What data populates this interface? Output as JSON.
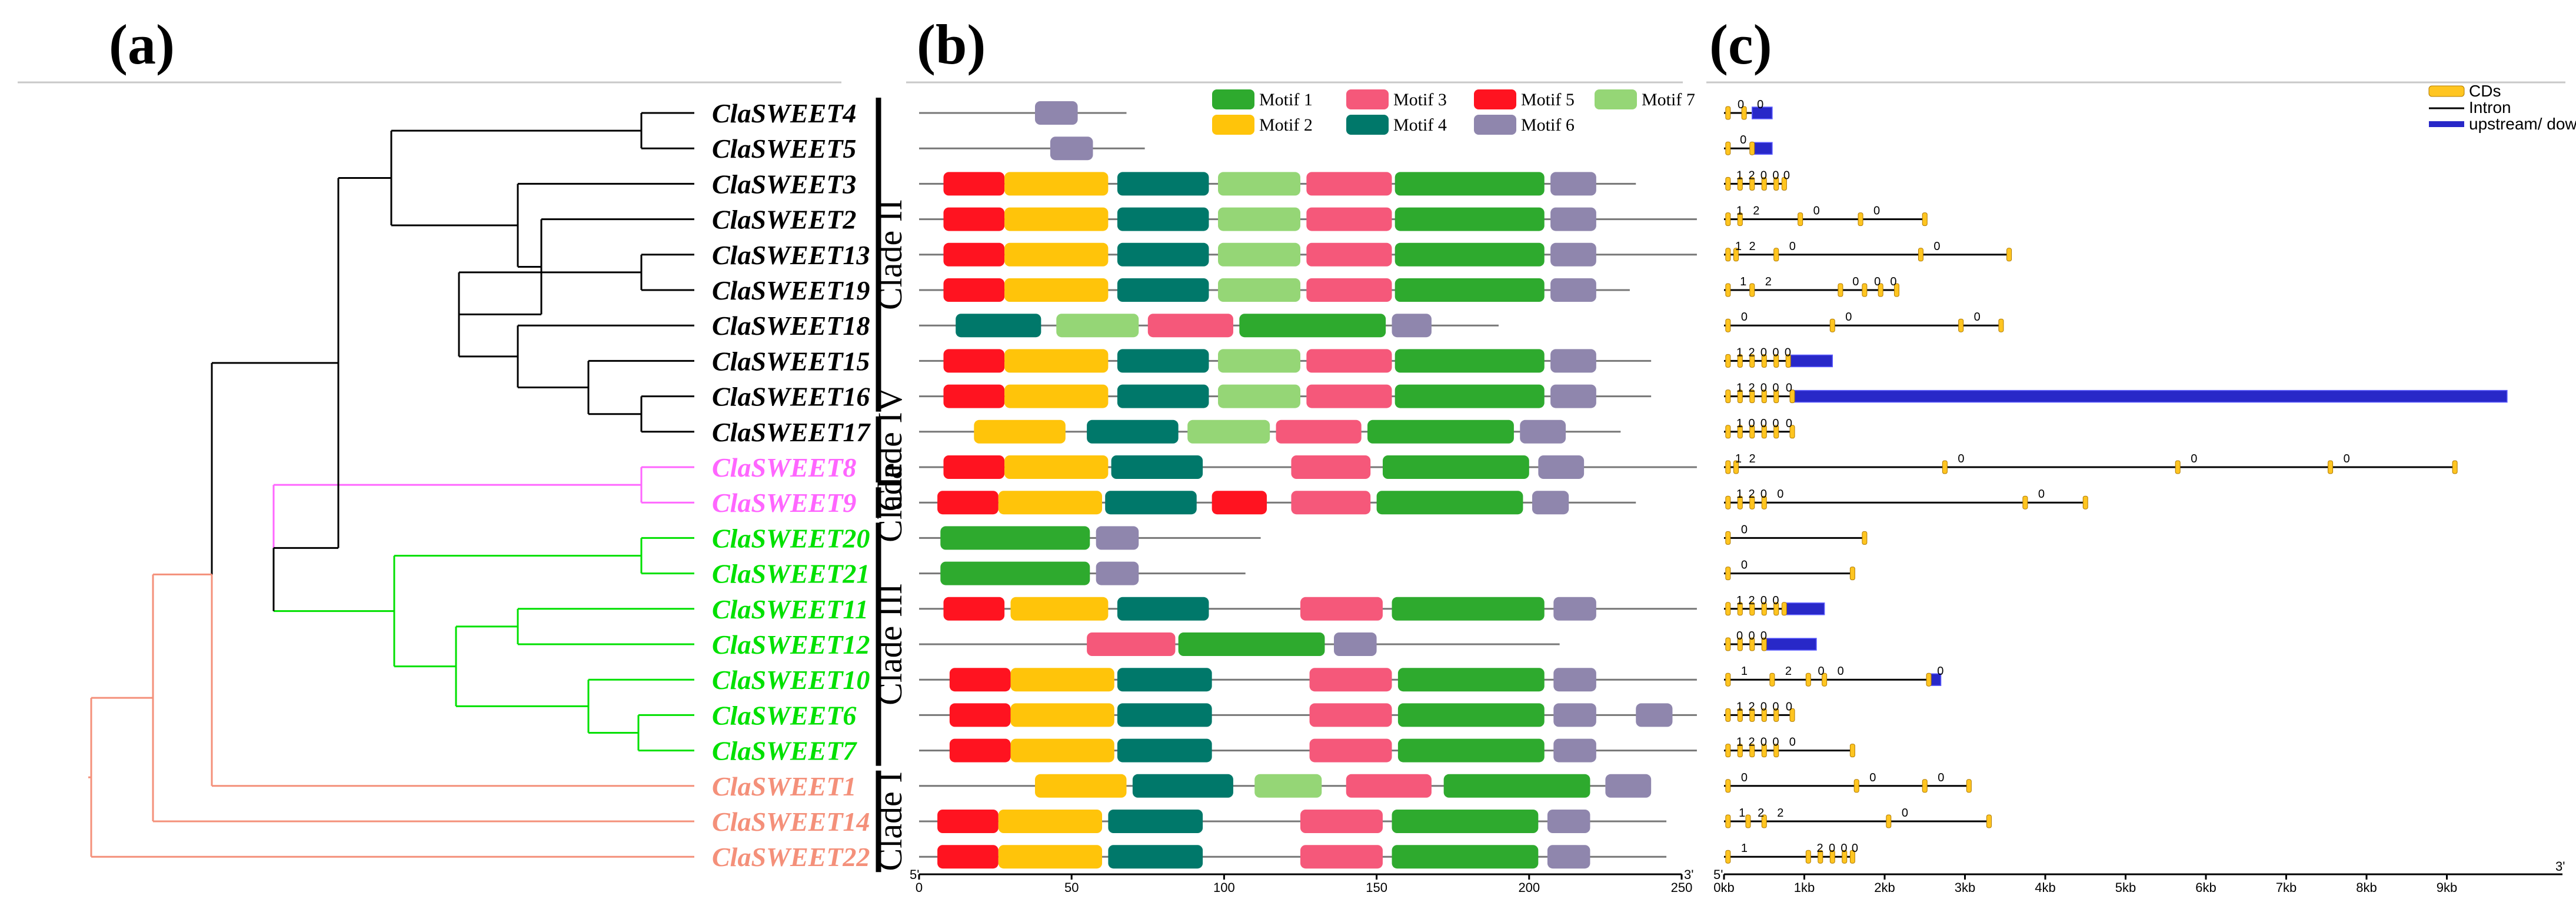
{
  "panels": {
    "a": "(a)",
    "b": "(b)",
    "c": "(c)"
  },
  "colors": {
    "black": "#000000",
    "pink": "#ff66ff",
    "green": "#00e000",
    "salmon": "#f4907a",
    "motif1": "#2eaa2e",
    "motif2": "#ffc40a",
    "motif3": "#f5587a",
    "motif4": "#00786a",
    "motif5": "#ff1320",
    "motif6": "#8f86ad",
    "motif7": "#95d676",
    "cds": "#ffc520",
    "utr": "#2828c8"
  },
  "genes": [
    {
      "name_prefix": "Cla",
      "name_suffix": "SWEET4",
      "color": "#000000"
    },
    {
      "name_prefix": "Cla",
      "name_suffix": "SWEET5",
      "color": "#000000"
    },
    {
      "name_prefix": "Cla",
      "name_suffix": "SWEET3",
      "color": "#000000"
    },
    {
      "name_prefix": "Cla",
      "name_suffix": "SWEET2",
      "color": "#000000"
    },
    {
      "name_prefix": "Cla",
      "name_suffix": "SWEET13",
      "color": "#000000"
    },
    {
      "name_prefix": "Cla",
      "name_suffix": "SWEET19",
      "color": "#000000"
    },
    {
      "name_prefix": "Cla",
      "name_suffix": "SWEET18",
      "color": "#000000"
    },
    {
      "name_prefix": "Cla",
      "name_suffix": "SWEET15",
      "color": "#000000"
    },
    {
      "name_prefix": "Cla",
      "name_suffix": "SWEET16",
      "color": "#000000"
    },
    {
      "name_prefix": "Cla",
      "name_suffix": "SWEET17",
      "color": "#000000"
    },
    {
      "name_prefix": "Cla",
      "name_suffix": "SWEET8",
      "color": "#ff66ff"
    },
    {
      "name_prefix": "Cla",
      "name_suffix": "SWEET9",
      "color": "#ff66ff"
    },
    {
      "name_prefix": "Cla",
      "name_suffix": "SWEET20",
      "color": "#00e000"
    },
    {
      "name_prefix": "Cla",
      "name_suffix": "SWEET21",
      "color": "#00e000"
    },
    {
      "name_prefix": "Cla",
      "name_suffix": "SWEET11",
      "color": "#00e000"
    },
    {
      "name_prefix": "Cla",
      "name_suffix": "SWEET12",
      "color": "#00e000"
    },
    {
      "name_prefix": "Cla",
      "name_suffix": "SWEET10",
      "color": "#00e000"
    },
    {
      "name_prefix": "Cla",
      "name_suffix": "SWEET6",
      "color": "#00e000"
    },
    {
      "name_prefix": "Cla",
      "name_suffix": "SWEET7",
      "color": "#00e000"
    },
    {
      "name_prefix": "Cla",
      "name_suffix": "SWEET1",
      "color": "#f4907a"
    },
    {
      "name_prefix": "Cla",
      "name_suffix": "SWEET14",
      "color": "#f4907a"
    },
    {
      "name_prefix": "Cla",
      "name_suffix": "SWEET22",
      "color": "#f4907a"
    }
  ],
  "clades": [
    {
      "label": "Clade II",
      "first": 0,
      "last": 8
    },
    {
      "label": "Clade IV",
      "first": 9,
      "last": 10
    },
    {
      "label": "Clade",
      "first": 11,
      "last": 11
    },
    {
      "label": "Clade III",
      "first": 12,
      "last": 18
    },
    {
      "label": "Clade I",
      "first": 19,
      "last": 21
    }
  ],
  "motif_legend": [
    {
      "label": "Motif 1",
      "color": "#2eaa2e"
    },
    {
      "label": "Motif 3",
      "color": "#f5587a"
    },
    {
      "label": "Motif 5",
      "color": "#ff1320"
    },
    {
      "label": "Motif 7",
      "color": "#95d676"
    },
    {
      "label": "Motif 2",
      "color": "#ffc40a"
    },
    {
      "label": "Motif 4",
      "color": "#00786a"
    },
    {
      "label": "Motif 6",
      "color": "#8f86ad"
    }
  ],
  "motif_axis": {
    "ticks": [
      0,
      50,
      100,
      150,
      200,
      250
    ],
    "min": 0,
    "max": 250,
    "start_label": "5'",
    "end_label": "3'"
  },
  "motifs": [
    {
      "length": 68,
      "motifs": [
        [
          6,
          38,
          52
        ]
      ]
    },
    {
      "length": 74,
      "motifs": [
        [
          6,
          43,
          57
        ]
      ]
    },
    {
      "length": 235,
      "motifs": [
        [
          5,
          8,
          28
        ],
        [
          2,
          28,
          62
        ],
        [
          4,
          65,
          95
        ],
        [
          7,
          98,
          125
        ],
        [
          3,
          127,
          155
        ],
        [
          1,
          156,
          205
        ],
        [
          6,
          207,
          222
        ]
      ]
    },
    {
      "length": 255,
      "motifs": [
        [
          5,
          8,
          28
        ],
        [
          2,
          28,
          62
        ],
        [
          4,
          65,
          95
        ],
        [
          7,
          98,
          125
        ],
        [
          3,
          127,
          155
        ],
        [
          1,
          156,
          205
        ],
        [
          6,
          207,
          222
        ]
      ]
    },
    {
      "length": 255,
      "motifs": [
        [
          5,
          8,
          28
        ],
        [
          2,
          28,
          62
        ],
        [
          4,
          65,
          95
        ],
        [
          7,
          98,
          125
        ],
        [
          3,
          127,
          155
        ],
        [
          1,
          156,
          205
        ],
        [
          6,
          207,
          222
        ]
      ]
    },
    {
      "length": 233,
      "motifs": [
        [
          5,
          8,
          28
        ],
        [
          2,
          28,
          62
        ],
        [
          4,
          65,
          95
        ],
        [
          7,
          98,
          125
        ],
        [
          3,
          127,
          155
        ],
        [
          1,
          156,
          205
        ],
        [
          6,
          207,
          222
        ]
      ]
    },
    {
      "length": 190,
      "motifs": [
        [
          4,
          12,
          40
        ],
        [
          7,
          45,
          72
        ],
        [
          3,
          75,
          103
        ],
        [
          1,
          105,
          153
        ],
        [
          6,
          155,
          168
        ]
      ]
    },
    {
      "length": 240,
      "motifs": [
        [
          5,
          8,
          28
        ],
        [
          2,
          28,
          62
        ],
        [
          4,
          65,
          95
        ],
        [
          7,
          98,
          125
        ],
        [
          3,
          127,
          155
        ],
        [
          1,
          156,
          205
        ],
        [
          6,
          207,
          222
        ]
      ]
    },
    {
      "length": 240,
      "motifs": [
        [
          5,
          8,
          28
        ],
        [
          2,
          28,
          62
        ],
        [
          4,
          65,
          95
        ],
        [
          7,
          98,
          125
        ],
        [
          3,
          127,
          155
        ],
        [
          1,
          156,
          205
        ],
        [
          6,
          207,
          222
        ]
      ]
    },
    {
      "length": 230,
      "motifs": [
        [
          2,
          18,
          48
        ],
        [
          4,
          55,
          85
        ],
        [
          7,
          88,
          115
        ],
        [
          3,
          117,
          145
        ],
        [
          1,
          147,
          195
        ],
        [
          6,
          197,
          212
        ]
      ]
    },
    {
      "length": 255,
      "motifs": [
        [
          5,
          8,
          28
        ],
        [
          2,
          28,
          62
        ],
        [
          4,
          63,
          93
        ],
        [
          3,
          122,
          148
        ],
        [
          1,
          152,
          200
        ],
        [
          6,
          203,
          218
        ]
      ]
    },
    {
      "length": 235,
      "motifs": [
        [
          5,
          6,
          26
        ],
        [
          2,
          26,
          60
        ],
        [
          4,
          61,
          91
        ],
        [
          5,
          96,
          114
        ],
        [
          3,
          122,
          148
        ],
        [
          1,
          150,
          198
        ],
        [
          6,
          201,
          213
        ]
      ]
    },
    {
      "length": 112,
      "motifs": [
        [
          1,
          7,
          56
        ],
        [
          6,
          58,
          72
        ]
      ]
    },
    {
      "length": 107,
      "motifs": [
        [
          1,
          7,
          56
        ],
        [
          6,
          58,
          72
        ]
      ]
    },
    {
      "length": 255,
      "motifs": [
        [
          5,
          8,
          28
        ],
        [
          2,
          30,
          62
        ],
        [
          4,
          65,
          95
        ],
        [
          3,
          125,
          152
        ],
        [
          1,
          155,
          205
        ],
        [
          6,
          208,
          222
        ]
      ]
    },
    {
      "length": 210,
      "motifs": [
        [
          3,
          55,
          84
        ],
        [
          1,
          85,
          133
        ],
        [
          6,
          136,
          150
        ]
      ]
    },
    {
      "length": 255,
      "motifs": [
        [
          5,
          10,
          30
        ],
        [
          2,
          30,
          64
        ],
        [
          4,
          65,
          96
        ],
        [
          3,
          128,
          155
        ],
        [
          1,
          157,
          205
        ],
        [
          6,
          208,
          222
        ]
      ]
    },
    {
      "length": 255,
      "motifs": [
        [
          5,
          10,
          30
        ],
        [
          2,
          30,
          64
        ],
        [
          4,
          65,
          96
        ],
        [
          3,
          128,
          155
        ],
        [
          1,
          157,
          205
        ],
        [
          6,
          208,
          222
        ],
        [
          6,
          235,
          247
        ]
      ]
    },
    {
      "length": 255,
      "motifs": [
        [
          5,
          10,
          30
        ],
        [
          2,
          30,
          64
        ],
        [
          4,
          65,
          96
        ],
        [
          3,
          128,
          155
        ],
        [
          1,
          157,
          205
        ],
        [
          6,
          208,
          222
        ]
      ]
    },
    {
      "length": 225,
      "motifs": [
        [
          2,
          38,
          68
        ],
        [
          4,
          70,
          103
        ],
        [
          7,
          110,
          132
        ],
        [
          3,
          140,
          168
        ],
        [
          1,
          172,
          220
        ],
        [
          6,
          225,
          240
        ]
      ]
    },
    {
      "length": 245,
      "motifs": [
        [
          5,
          6,
          26
        ],
        [
          2,
          26,
          60
        ],
        [
          4,
          62,
          93
        ],
        [
          3,
          125,
          152
        ],
        [
          1,
          155,
          203
        ],
        [
          6,
          206,
          220
        ]
      ]
    },
    {
      "length": 245,
      "motifs": [
        [
          5,
          6,
          26
        ],
        [
          2,
          26,
          60
        ],
        [
          4,
          62,
          93
        ],
        [
          3,
          125,
          152
        ],
        [
          1,
          155,
          203
        ],
        [
          6,
          206,
          220
        ]
      ]
    }
  ],
  "gene_legend": [
    {
      "label": "CDs",
      "kind": "cds"
    },
    {
      "label": "Intron",
      "kind": "intron"
    },
    {
      "label": "upstream/ downstream",
      "kind": "utr"
    }
  ],
  "gene_axis": {
    "ticks": [
      "0kb",
      "1kb",
      "2kb",
      "3kb",
      "4kb",
      "5kb",
      "6kb",
      "7kb",
      "8kb",
      "9kb"
    ],
    "start_label": "5'",
    "end_label": "3'"
  },
  "gene_structures": [
    {
      "length": 0.6,
      "cds": [
        0.05,
        0.25
      ],
      "utr": [
        0.35,
        0.6
      ],
      "phases": [
        "0",
        "0"
      ]
    },
    {
      "length": 0.6,
      "cds": [
        0.05,
        0.35
      ],
      "utr": [
        0.35,
        0.6
      ],
      "phases": [
        "0"
      ]
    },
    {
      "length": 0.75,
      "cds": [
        0.05,
        0.2,
        0.35,
        0.5,
        0.65,
        0.75
      ],
      "utr": null,
      "phases": [
        "1",
        "2",
        "0",
        "0",
        "0"
      ]
    },
    {
      "length": 2.5,
      "cds": [
        0.05,
        0.2,
        0.95,
        1.7,
        2.5
      ],
      "utr": null,
      "phases": [
        "1",
        "2",
        "0",
        "0"
      ]
    },
    {
      "length": 3.55,
      "cds": [
        0.05,
        0.15,
        0.65,
        2.45,
        3.55
      ],
      "utr": null,
      "phases": [
        "1",
        "2",
        "0",
        "0"
      ]
    },
    {
      "length": 2.15,
      "cds": [
        0.05,
        0.35,
        1.45,
        1.75,
        1.95,
        2.15
      ],
      "utr": null,
      "phases": [
        "1",
        "2",
        "0",
        "0",
        "0"
      ]
    },
    {
      "length": 3.45,
      "cds": [
        0.05,
        1.35,
        2.95,
        3.45
      ],
      "utr": null,
      "phases": [
        "0",
        "0",
        "0"
      ]
    },
    {
      "length": 1.35,
      "cds": [
        0.05,
        0.2,
        0.35,
        0.5,
        0.65,
        0.8
      ],
      "utr": [
        0.8,
        1.35
      ],
      "phases": [
        "1",
        "2",
        "0",
        "0",
        "0"
      ]
    },
    {
      "length": 9.75,
      "cds": [
        0.05,
        0.2,
        0.35,
        0.5,
        0.65,
        0.85
      ],
      "utr": [
        0.85,
        9.75
      ],
      "phases": [
        "1",
        "2",
        "0",
        "0",
        "0"
      ]
    },
    {
      "length": 0.85,
      "cds": [
        0.05,
        0.2,
        0.35,
        0.5,
        0.65,
        0.85
      ],
      "utr": null,
      "phases": [
        "1",
        "0",
        "0",
        "0",
        "0"
      ]
    },
    {
      "length": 9.1,
      "cds": [
        0.05,
        0.15,
        2.75,
        5.65,
        7.55,
        9.1
      ],
      "utr": null,
      "phases": [
        "1",
        "2",
        "0",
        "0",
        "0"
      ]
    },
    {
      "length": 4.5,
      "cds": [
        0.05,
        0.2,
        0.35,
        0.5,
        3.75,
        4.5
      ],
      "utr": null,
      "phases": [
        "1",
        "2",
        "0",
        "0",
        "0"
      ]
    },
    {
      "length": 1.75,
      "cds": [
        0.05,
        1.75
      ],
      "utr": null,
      "phases": [
        "0"
      ]
    },
    {
      "length": 1.6,
      "cds": [
        0.05,
        1.6
      ],
      "utr": null,
      "phases": [
        "0"
      ]
    },
    {
      "length": 1.25,
      "cds": [
        0.05,
        0.2,
        0.35,
        0.5,
        0.65,
        0.75
      ],
      "utr": [
        0.75,
        1.25
      ],
      "phases": [
        "1",
        "2",
        "0",
        "0"
      ]
    },
    {
      "length": 1.15,
      "cds": [
        0.05,
        0.2,
        0.35,
        0.5
      ],
      "utr": [
        0.5,
        1.15
      ],
      "phases": [
        "0",
        "0",
        "0"
      ]
    },
    {
      "length": 2.7,
      "cds": [
        0.05,
        0.6,
        1.05,
        1.25,
        2.55
      ],
      "utr": [
        2.55,
        2.7
      ],
      "phases": [
        "1",
        "2",
        "0",
        "0",
        "0"
      ]
    },
    {
      "length": 0.85,
      "cds": [
        0.05,
        0.2,
        0.35,
        0.5,
        0.65,
        0.85
      ],
      "utr": null,
      "phases": [
        "1",
        "2",
        "0",
        "0",
        "0"
      ]
    },
    {
      "length": 1.6,
      "cds": [
        0.05,
        0.2,
        0.35,
        0.5,
        0.65,
        1.6
      ],
      "utr": null,
      "phases": [
        "1",
        "2",
        "0",
        "0",
        "0"
      ]
    },
    {
      "length": 3.05,
      "cds": [
        0.05,
        1.65,
        2.5,
        3.05
      ],
      "utr": null,
      "phases": [
        "0",
        "0",
        "0"
      ]
    },
    {
      "length": 3.3,
      "cds": [
        0.05,
        0.3,
        0.5,
        2.05,
        3.3
      ],
      "utr": null,
      "phases": [
        "1",
        "2",
        "2",
        "0"
      ]
    },
    {
      "length": 1.6,
      "cds": [
        0.05,
        1.05,
        1.2,
        1.35,
        1.5,
        1.6
      ],
      "utr": null,
      "phases": [
        "1",
        "2",
        "0",
        "0",
        "0"
      ]
    }
  ]
}
